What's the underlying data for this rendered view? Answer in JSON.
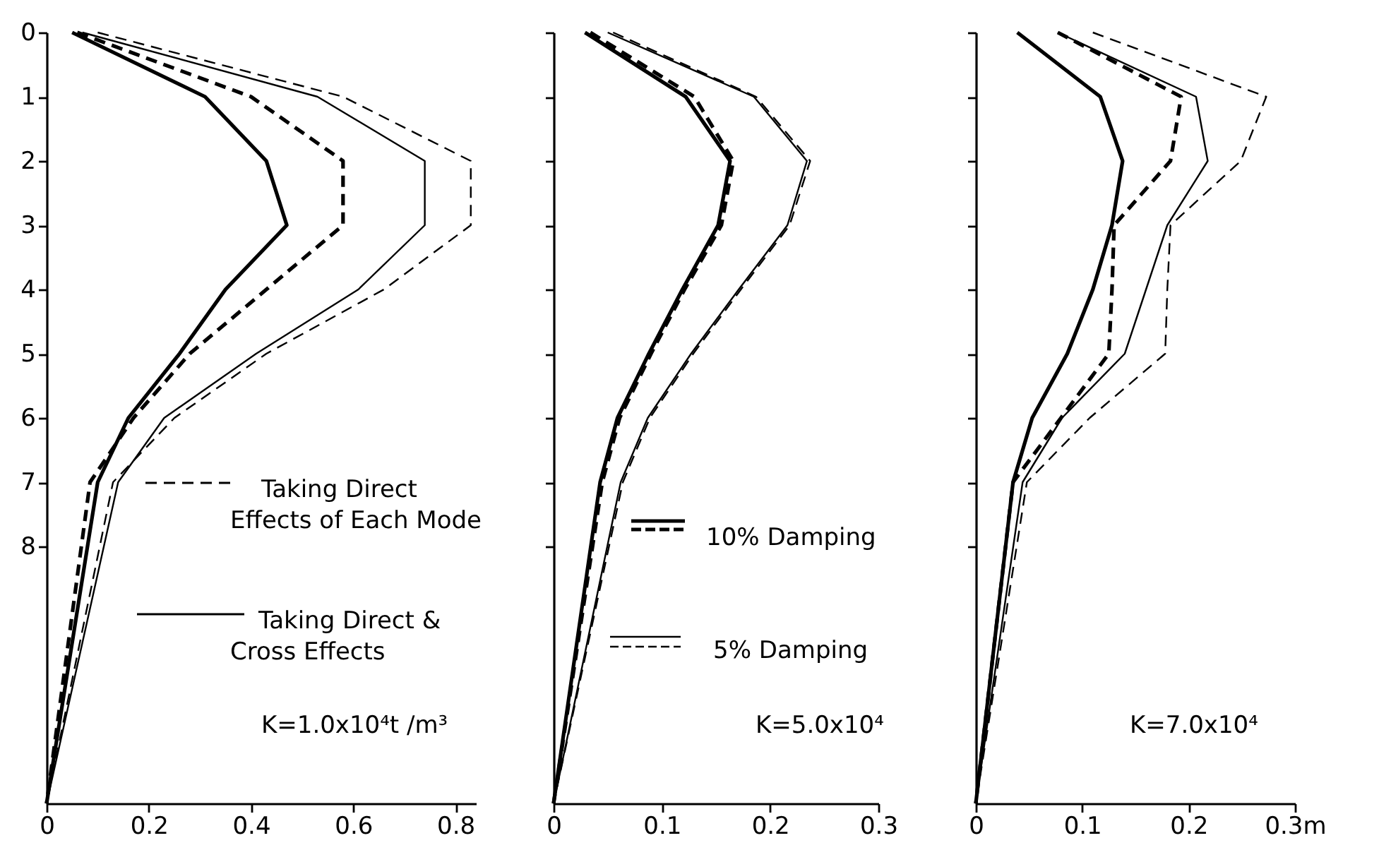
{
  "chart_data": [
    {
      "type": "line",
      "xlim": [
        0,
        0.84
      ],
      "xticks": [
        0,
        0.2,
        0.4,
        0.6,
        0.8
      ],
      "ylim": [
        12,
        0
      ],
      "yticks": [
        0,
        1,
        2,
        3,
        4,
        5,
        6,
        7,
        8
      ],
      "series": [
        {
          "color": "#000000",
          "line_style": "dashed",
          "x": [
            0.06,
            0.4,
            0.58,
            0.58,
            0.43,
            0.28,
            0.17,
            0.085,
            0
          ],
          "values": [
            0,
            1,
            2,
            3,
            4,
            5,
            6,
            7,
            12
          ]
        },
        {
          "color": "#000000",
          "line_style": "solid",
          "x": [
            0.05,
            0.31,
            0.43,
            0.47,
            0.35,
            0.26,
            0.16,
            0.1,
            0
          ],
          "values": [
            0,
            1,
            2,
            3,
            4,
            5,
            6,
            7,
            12
          ]
        },
        {
          "color": "#000000",
          "line_style": "dashed",
          "x": [
            0.1,
            0.58,
            0.83,
            0.83,
            0.66,
            0.43,
            0.25,
            0.13,
            0
          ],
          "values": [
            0,
            1,
            2,
            3,
            4,
            5,
            6,
            7,
            12
          ]
        },
        {
          "color": "#000000",
          "line_style": "solid",
          "x": [
            0.07,
            0.53,
            0.74,
            0.74,
            0.61,
            0.41,
            0.23,
            0.14,
            0
          ],
          "values": [
            0,
            1,
            2,
            3,
            4,
            5,
            6,
            7,
            12
          ]
        }
      ],
      "annotations": [
        "Taking Direct Effects of Each Mode",
        "Taking Direct & Cross Effects",
        "K=1.0x10⁴t /m³"
      ]
    },
    {
      "type": "line",
      "xlim": [
        0,
        0.3
      ],
      "xticks": [
        0,
        0.1,
        0.2,
        0.3
      ],
      "ylim": [
        12,
        0
      ],
      "yticks": [
        0,
        1,
        2,
        3,
        4,
        5,
        6,
        7,
        8
      ],
      "tick_labels": "x",
      "series": [
        {
          "color": "#000000",
          "line_style": "dashed",
          "x": [
            0.034,
            0.13,
            0.166,
            0.155,
            0.121,
            0.09,
            0.061,
            0.045,
            0
          ],
          "values": [
            0,
            1,
            2,
            3,
            4,
            5,
            6,
            7,
            12
          ]
        },
        {
          "color": "#000000",
          "line_style": "solid",
          "x": [
            0.029,
            0.122,
            0.163,
            0.152,
            0.119,
            0.088,
            0.059,
            0.043,
            0
          ],
          "values": [
            0,
            1,
            2,
            3,
            4,
            5,
            6,
            7,
            12
          ]
        },
        {
          "color": "#000000",
          "line_style": "dashed",
          "x": [
            0.055,
            0.187,
            0.237,
            0.218,
            0.173,
            0.129,
            0.089,
            0.064,
            0
          ],
          "values": [
            0,
            1,
            2,
            3,
            4,
            5,
            6,
            7,
            12
          ]
        },
        {
          "color": "#000000",
          "line_style": "solid",
          "x": [
            0.05,
            0.185,
            0.234,
            0.216,
            0.171,
            0.127,
            0.087,
            0.062,
            0
          ],
          "values": [
            0,
            1,
            2,
            3,
            4,
            5,
            6,
            7,
            12
          ]
        }
      ],
      "annotations": [
        "10% Damping",
        "5% Damping",
        "K=5.0x10⁴"
      ]
    },
    {
      "type": "line",
      "xlim": [
        0,
        0.3
      ],
      "xticks": [
        0,
        0.1,
        0.2,
        {
          "value": 0.3,
          "label": "0.3m"
        }
      ],
      "ylim": [
        12,
        0
      ],
      "yticks": [
        0,
        1,
        2,
        3,
        4,
        5,
        6,
        7,
        8
      ],
      "tick_labels": "x",
      "series": [
        {
          "color": "#000000",
          "line_style": "dashed",
          "x": [
            0.077,
            0.193,
            0.183,
            0.13,
            0.128,
            0.125,
            0.08,
            0.035,
            0
          ],
          "values": [
            0,
            1,
            2,
            3,
            4,
            5,
            6,
            7,
            12
          ]
        },
        {
          "color": "#000000",
          "line_style": "solid",
          "x": [
            0.039,
            0.117,
            0.138,
            0.128,
            0.11,
            0.086,
            0.053,
            0.035,
            0
          ],
          "values": [
            0,
            1,
            2,
            3,
            4,
            5,
            6,
            7,
            12
          ]
        },
        {
          "color": "#000000",
          "line_style": "dashed",
          "x": [
            0.11,
            0.273,
            0.249,
            0.183,
            0.18,
            0.178,
            0.107,
            0.048,
            0
          ],
          "values": [
            0,
            1,
            2,
            3,
            4,
            5,
            6,
            7,
            12
          ]
        },
        {
          "color": "#000000",
          "line_style": "solid",
          "x": [
            0.077,
            0.207,
            0.218,
            0.18,
            0.16,
            0.14,
            0.081,
            0.044,
            0
          ],
          "values": [
            0,
            1,
            2,
            3,
            4,
            5,
            6,
            7,
            12
          ]
        }
      ],
      "annotations": [
        "K=7.0x10⁴"
      ]
    }
  ]
}
